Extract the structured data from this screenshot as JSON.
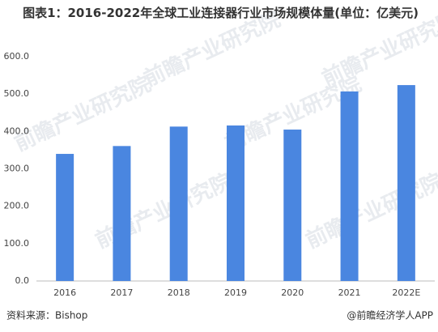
{
  "chart_data": {
    "type": "bar",
    "title": "图表1：2016-2022年全球工业连接器行业市场规模体量(单位：亿美元)",
    "categories": [
      "2016",
      "2017",
      "2018",
      "2019",
      "2020",
      "2021",
      "2022E"
    ],
    "values": [
      340,
      361,
      413,
      416,
      405,
      507,
      524
    ],
    "color": "#4a86e0",
    "ylim": [
      0,
      600
    ],
    "yticks": [
      {
        "value": 0,
        "label": "0.0"
      },
      {
        "value": 100,
        "label": "100.0"
      },
      {
        "value": 200,
        "label": "200.0"
      },
      {
        "value": 300,
        "label": "300.0"
      },
      {
        "value": 400,
        "label": "400.0"
      },
      {
        "value": 500,
        "label": "500.0"
      },
      {
        "value": 600,
        "label": "600.0"
      }
    ],
    "grid": false,
    "watermark": "前瞻产业研究院",
    "source": "资料来源：Bishop",
    "credit": "@前瞻经济学人APP"
  }
}
